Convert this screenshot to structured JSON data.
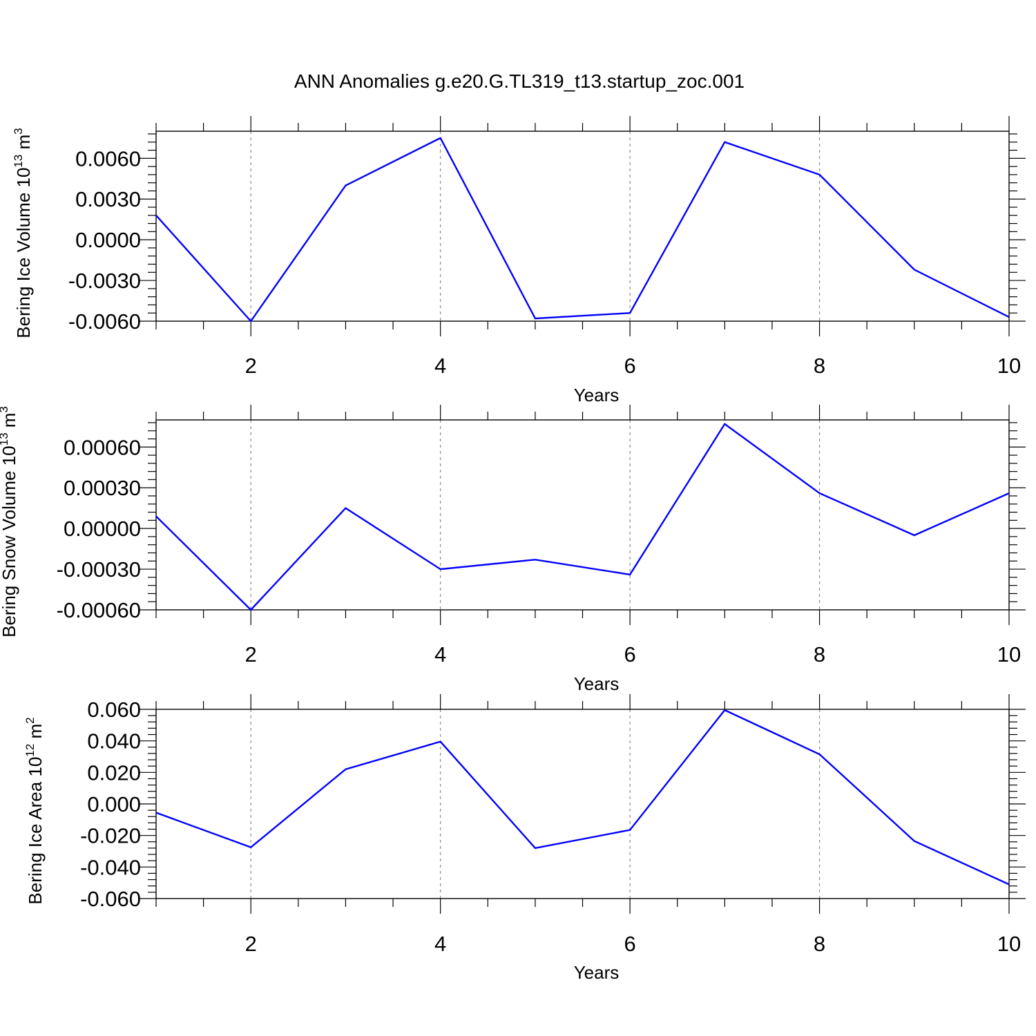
{
  "title": "ANN Anomalies g.e20.G.TL319_t13.startup_zoc.001",
  "colors": {
    "line": "#0000ff",
    "axis": "#000000",
    "grid": "#888888"
  },
  "chart_data": [
    {
      "type": "line",
      "ylabel": {
        "text": "Bering Ice Volume 10",
        "exp": "13",
        "unit": " m",
        "unit_exp": "3"
      },
      "xlabel": "Years",
      "xlim": [
        1,
        10
      ],
      "ylim": [
        -0.006,
        0.008
      ],
      "x_ticks": [
        "2",
        "4",
        "6",
        "8",
        "10"
      ],
      "y_ticks": [
        "0.0060",
        "0.0030",
        "0.0000",
        "-0.0030",
        "-0.0060"
      ],
      "y_tick_values": [
        0.006,
        0.003,
        0.0,
        -0.003,
        -0.006
      ],
      "vgrid": [
        2,
        4,
        6,
        8
      ],
      "series": [
        {
          "x": [
            1,
            2,
            3,
            4,
            5,
            6,
            7,
            8,
            9,
            10
          ],
          "values": [
            0.0018,
            -0.006,
            0.004,
            0.0075,
            -0.0058,
            -0.0054,
            0.0072,
            0.0048,
            -0.0022,
            -0.0057
          ]
        }
      ]
    },
    {
      "type": "line",
      "ylabel": {
        "text": "Bering Snow Volume 10",
        "exp": "13",
        "unit": " m",
        "unit_exp": "3"
      },
      "xlabel": "Years",
      "xlim": [
        1,
        10
      ],
      "ylim": [
        -0.0006,
        0.0008
      ],
      "x_ticks": [
        "2",
        "4",
        "6",
        "8",
        "10"
      ],
      "y_ticks": [
        "0.00060",
        "0.00030",
        "0.00000",
        "-0.00030",
        "-0.00060"
      ],
      "y_tick_values": [
        0.0006,
        0.0003,
        0.0,
        -0.0003,
        -0.0006
      ],
      "vgrid": [
        2,
        4,
        6,
        8
      ],
      "series": [
        {
          "x": [
            1,
            2,
            3,
            4,
            5,
            6,
            7,
            8,
            9,
            10
          ],
          "values": [
            9e-05,
            -0.0006,
            0.00015,
            -0.0003,
            -0.00023,
            -0.00034,
            0.00077,
            0.00026,
            -5e-05,
            0.00026
          ]
        }
      ]
    },
    {
      "type": "line",
      "ylabel": {
        "text": "Bering Ice Area 10",
        "exp": "12",
        "unit": " m",
        "unit_exp": "2"
      },
      "xlabel": "Years",
      "xlim": [
        1,
        10
      ],
      "ylim": [
        -0.06,
        0.06
      ],
      "x_ticks": [
        "2",
        "4",
        "6",
        "8",
        "10"
      ],
      "y_ticks": [
        "0.060",
        "0.040",
        "0.020",
        "0.000",
        "-0.020",
        "-0.040",
        "-0.060"
      ],
      "y_tick_values": [
        0.06,
        0.04,
        0.02,
        0.0,
        -0.02,
        -0.04,
        -0.06
      ],
      "vgrid": [
        2,
        4,
        6,
        8
      ],
      "series": [
        {
          "x": [
            1,
            2,
            3,
            4,
            5,
            6,
            7,
            8,
            9,
            10
          ],
          "values": [
            -0.0055,
            -0.0275,
            0.022,
            0.0395,
            -0.028,
            -0.0165,
            0.0595,
            0.0315,
            -0.0235,
            -0.051
          ]
        }
      ]
    }
  ]
}
